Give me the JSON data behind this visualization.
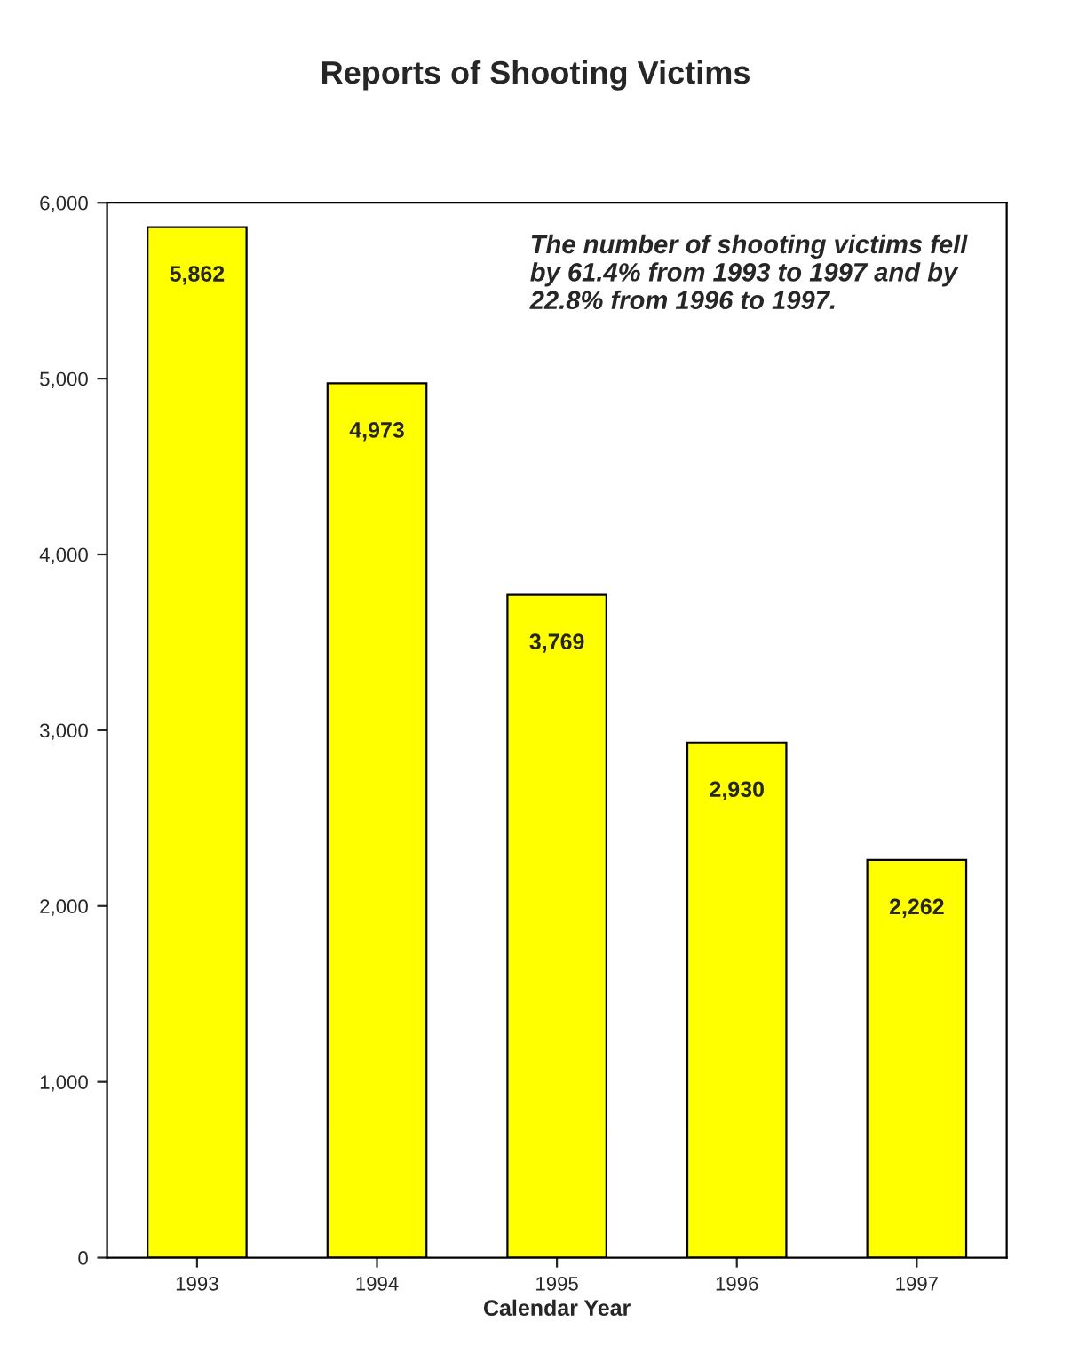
{
  "chart_data": {
    "type": "bar",
    "title": "Reports of Shooting Victims",
    "xlabel": "Calendar Year",
    "categories": [
      "1993",
      "1994",
      "1995",
      "1996",
      "1997"
    ],
    "values": [
      5862,
      4973,
      3769,
      2930,
      2262
    ],
    "value_labels": [
      "5,862",
      "4,973",
      "3,769",
      "2,930",
      "2,262"
    ],
    "color": "#ffff00",
    "ylim": [
      0,
      6000
    ],
    "yticks": [
      0,
      {
        "value": 1000,
        "label": "1,000"
      },
      {
        "value": 2000,
        "label": "2,000"
      },
      {
        "value": 3000,
        "label": "3,000"
      },
      {
        "value": 4000,
        "label": "4,000"
      },
      {
        "value": 5000,
        "label": "5,000"
      },
      {
        "value": 6000,
        "label": "6,000"
      }
    ],
    "grid": false,
    "annotations": [
      "The number of shooting victims fell\nby 61.4% from 1993 to 1997 and by\n22.8% from 1996 to 1997."
    ]
  }
}
